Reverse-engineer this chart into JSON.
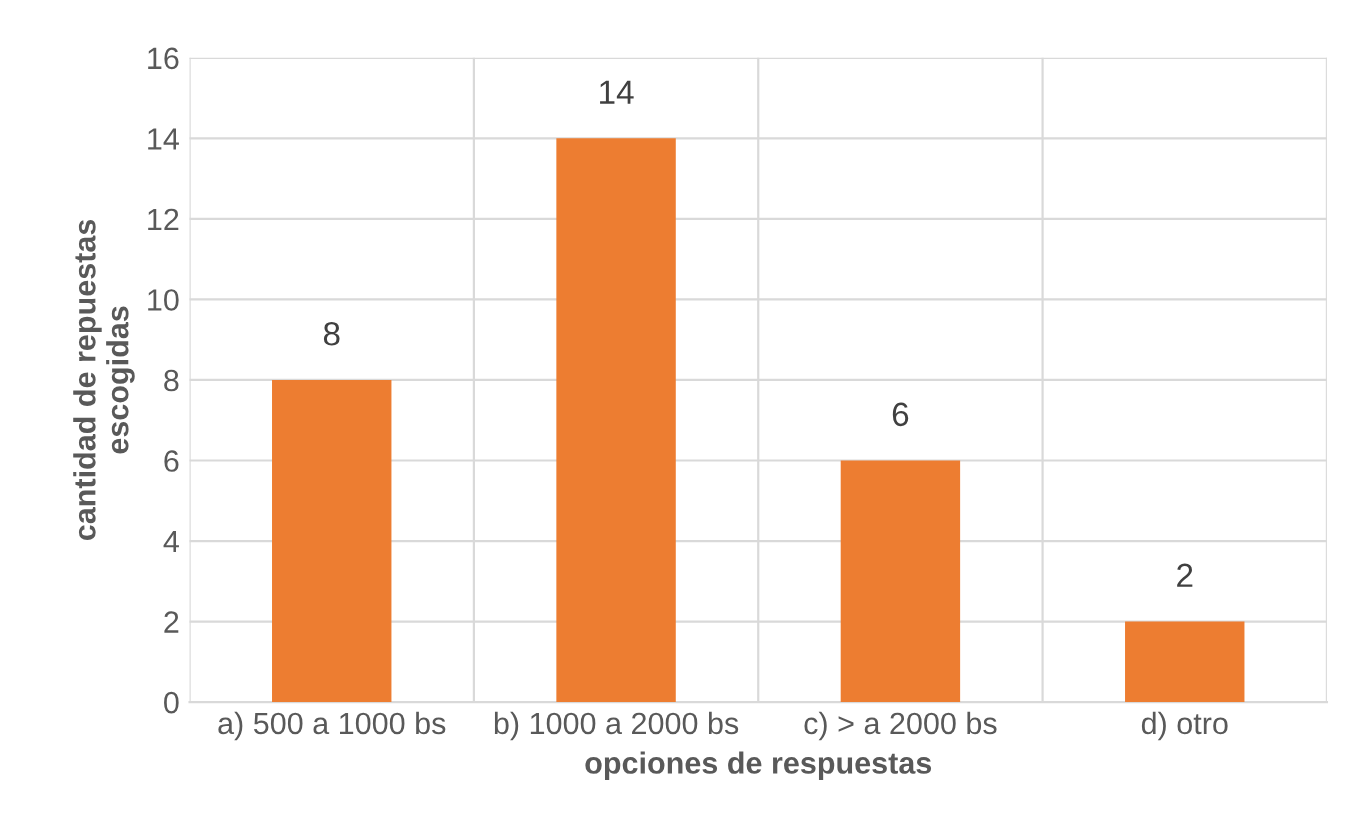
{
  "chart_data": {
    "type": "bar",
    "xlabel": "opciones de respuestas",
    "ylabel": "cantidad de repuestas\nescogidas",
    "categories": [
      "a) 500 a 1000 bs",
      "b) 1000 a 2000 bs",
      "c) > a 2000 bs",
      "d) otro"
    ],
    "values": [
      8,
      14,
      6,
      2
    ],
    "color": "#ed7d31",
    "ylim": [
      0,
      16
    ],
    "yticks": [
      0,
      2,
      4,
      6,
      8,
      10,
      12,
      14,
      16
    ],
    "grid": true,
    "data_labels": true
  }
}
